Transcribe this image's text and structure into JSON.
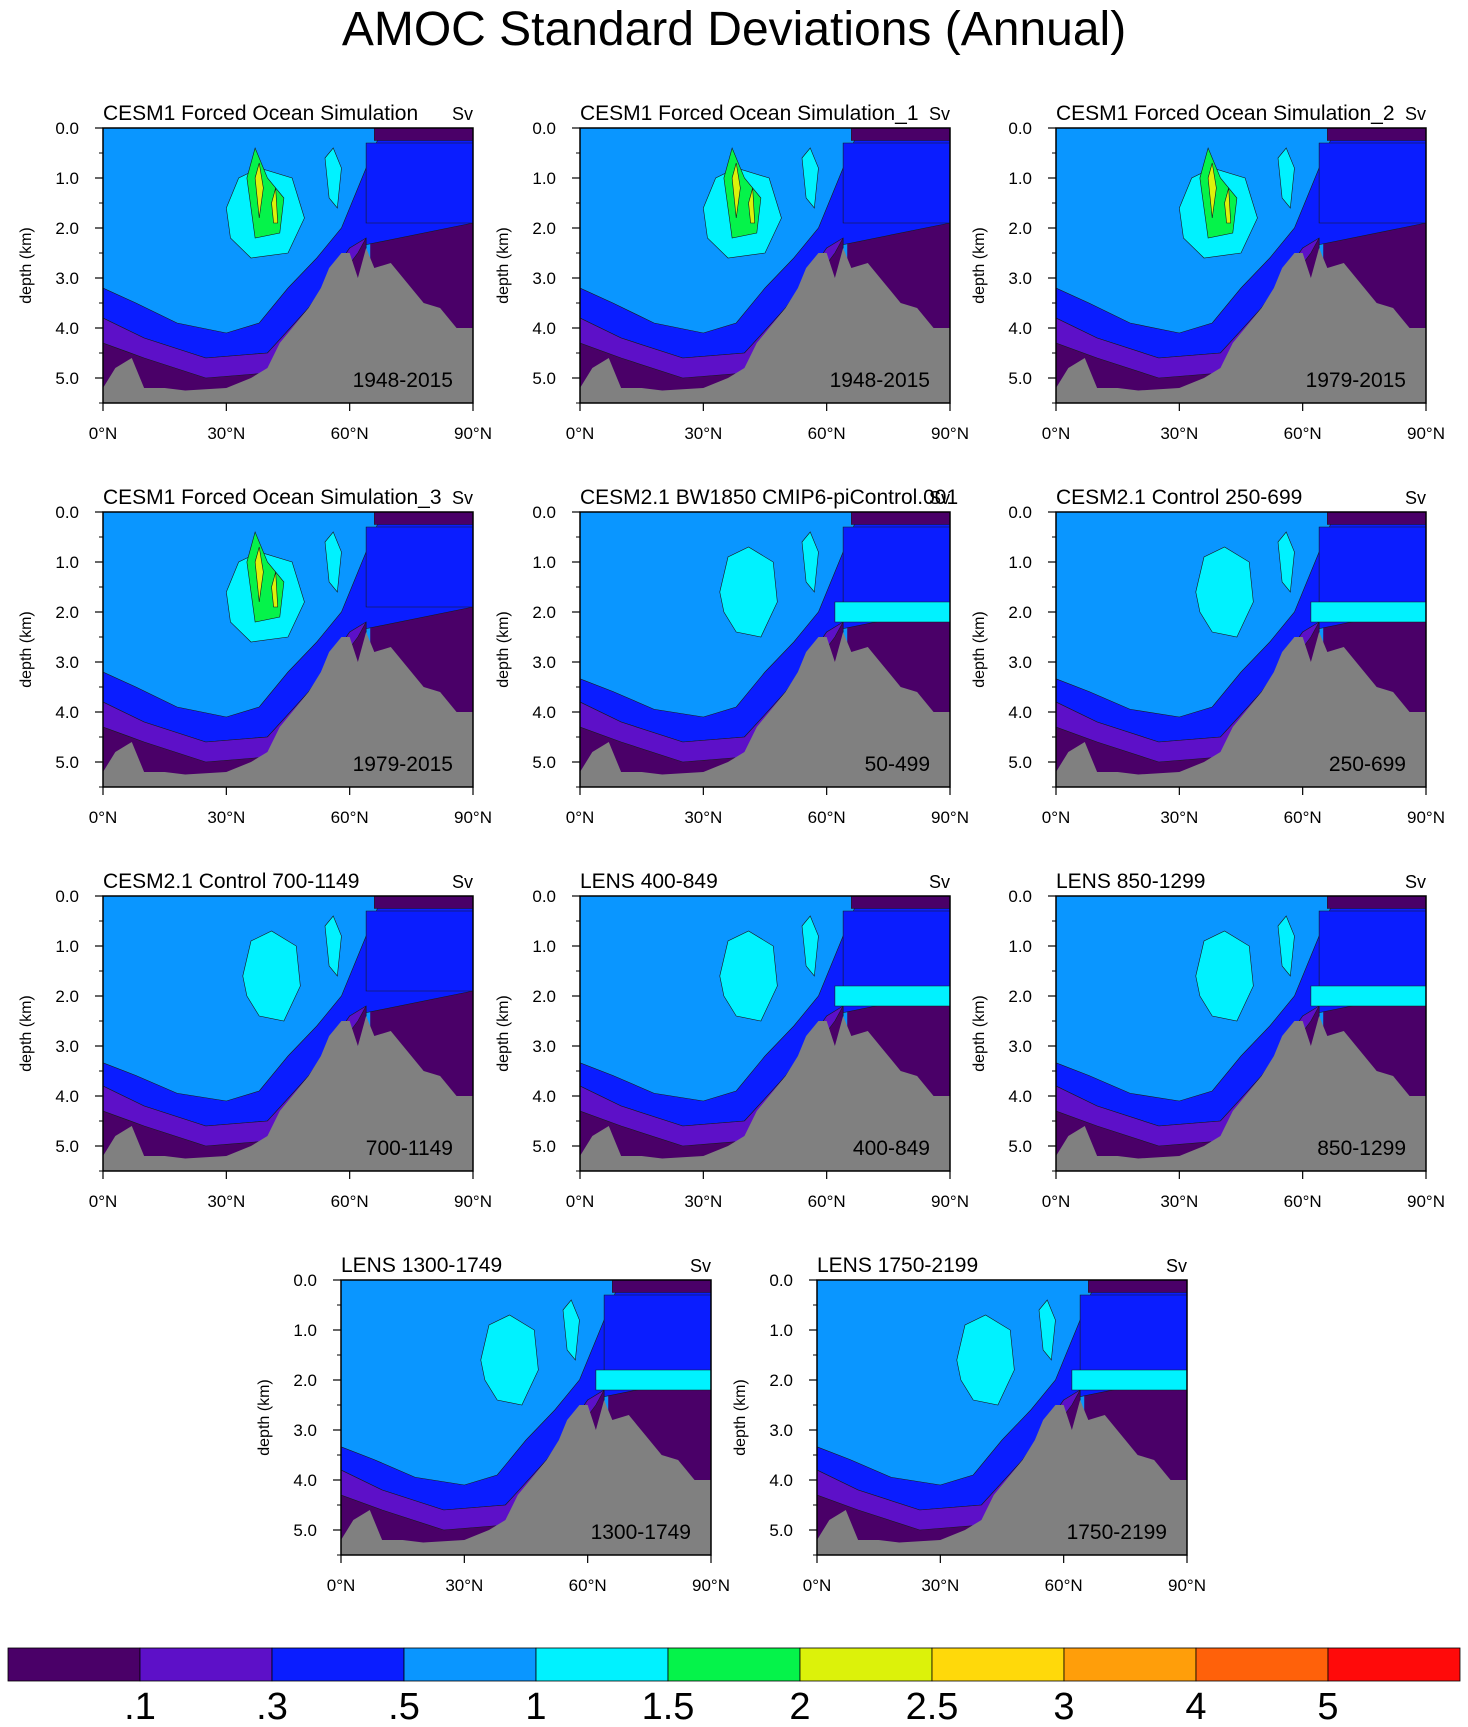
{
  "figure": {
    "title": "AMOC Standard Deviations (Annual)"
  },
  "chart_data": {
    "type": "contour",
    "common": {
      "ylabel": "depth (km)",
      "yticks": [
        "0.0",
        "1.0",
        "2.0",
        "3.0",
        "4.0",
        "5.0"
      ],
      "xticks": [
        "0°N",
        "30°N",
        "60°N",
        "90°N"
      ],
      "xlim": [
        0,
        90
      ],
      "ylim": [
        5.5,
        0
      ],
      "units": "Sv"
    },
    "panels": [
      {
        "title": "CESM1 Forced Ocean Simulation",
        "units": "Sv",
        "period": "1948-2015",
        "variant": "fos"
      },
      {
        "title": "CESM1 Forced Ocean Simulation_1",
        "units": "Sv",
        "period": "1948-2015",
        "variant": "fos"
      },
      {
        "title": "CESM1 Forced Ocean Simulation_2",
        "units": "Sv",
        "period": "1979-2015",
        "variant": "fos"
      },
      {
        "title": "CESM1 Forced Ocean Simulation_3",
        "units": "Sv",
        "period": "1979-2015",
        "variant": "fos"
      },
      {
        "title": "CESM2.1 BW1850 CMIP6-piControl.001",
        "units": "Sv",
        "period": "50-499",
        "variant": "ctl"
      },
      {
        "title": "CESM2.1 Control 250-699",
        "units": "Sv",
        "period": "250-699",
        "variant": "ctl"
      },
      {
        "title": "CESM2.1 Control 700-1149",
        "units": "Sv",
        "period": "700-1149",
        "variant": "ctl2"
      },
      {
        "title": "LENS 400-849",
        "units": "Sv",
        "period": "400-849",
        "variant": "lens"
      },
      {
        "title": "LENS 850-1299",
        "units": "Sv",
        "period": "850-1299",
        "variant": "lens"
      },
      {
        "title": "LENS 1300-1749",
        "units": "Sv",
        "period": "1300-1749",
        "variant": "lens"
      },
      {
        "title": "LENS 1750-2199",
        "units": "Sv",
        "period": "1750-2199",
        "variant": "lens"
      }
    ],
    "colorbar": {
      "labels": [
        ".1",
        ".3",
        ".5",
        "1",
        "1.5",
        "2",
        "2.5",
        "3",
        "4",
        "5"
      ],
      "colors": [
        "#4a0068",
        "#5d10c8",
        "#0a1dff",
        "#0a96ff",
        "#00f2ff",
        "#05f34a",
        "#dcf20a",
        "#ffd90a",
        "#ff9e0a",
        "#ff610a",
        "#ff0a0a"
      ]
    },
    "land_color": "#808080"
  }
}
